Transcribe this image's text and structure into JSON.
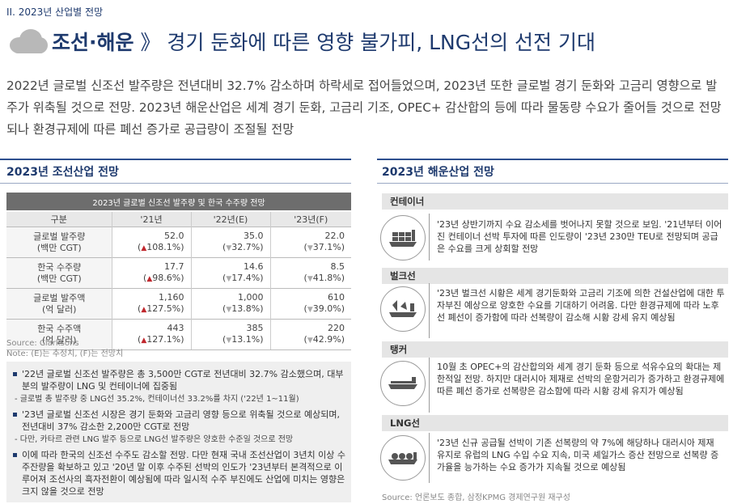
{
  "section_label": "II. 2023년 산업별 전망",
  "headline": {
    "bold": "조선·해운",
    "sep": " 》",
    "rest": " 경기 둔화에 따른 영향 불가피, LNG선의 선전 기대"
  },
  "intro": "2022년 글로벌 신조선 발주량은 전년대비 32.7% 감소하며 하락세로 접어들었으며, 2023년 또한 글로벌 경기 둔화와 고금리 영향으로 발주가 위축될 것으로 전망. 2023년 해운산업은 세계 경기 둔화, 고금리 기조, OPEC+ 감산합의 등에 따라 물동량 수요가 줄어들 것으로 전망되나 환경규제에 따른 폐선 증가로 공급량이 조절될 전망",
  "left_heading": "2023년 조선산업 전망",
  "right_heading": "2023년 해운산업 전망",
  "table": {
    "caption": "2023년 글로벌 신조선 발주량 및 한국 수주량 전망",
    "headers": [
      "구분",
      "'21년",
      "'22년(E)",
      "'23년(F)"
    ],
    "rows": [
      {
        "label1": "글로벌 발주량",
        "label2": "(백만 CGT)",
        "cells": [
          {
            "v": "52.0",
            "c": "108.1%",
            "d": "up"
          },
          {
            "v": "35.0",
            "c": "32.7%",
            "d": "dn"
          },
          {
            "v": "22.0",
            "c": "37.1%",
            "d": "dn"
          }
        ]
      },
      {
        "label1": "한국 수주량",
        "label2": "(백만 CGT)",
        "cells": [
          {
            "v": "17.7",
            "c": "98.6%",
            "d": "up"
          },
          {
            "v": "14.6",
            "c": "17.4%",
            "d": "dn"
          },
          {
            "v": "8.5",
            "c": "41.8%",
            "d": "dn"
          }
        ]
      },
      {
        "label1": "글로벌 발주액",
        "label2": "(억 달러)",
        "cells": [
          {
            "v": "1,160",
            "c": "127.5%",
            "d": "up"
          },
          {
            "v": "1,000",
            "c": "13.8%",
            "d": "dn"
          },
          {
            "v": "610",
            "c": "39.0%",
            "d": "dn"
          }
        ]
      },
      {
        "label1": "한국 수주액",
        "label2": "(억 달러)",
        "cells": [
          {
            "v": "443",
            "c": "127.1%",
            "d": "up"
          },
          {
            "v": "385",
            "c": "13.1%",
            "d": "dn"
          },
          {
            "v": "220",
            "c": "42.9%",
            "d": "dn"
          }
        ]
      }
    ],
    "source": "Source: Clarksons",
    "note": "Note: (E)는 추정치, (F)는 전망치"
  },
  "bullets": {
    "b1": "'22년 글로벌 신조선 발주량은 총 3,500만 CGT로 전년대비 32.7% 감소했으며, 대부분의 발주량이 LNG 및 컨테이너에 집중됨",
    "s1": "- 글로벌 총 발주량 중 LNG선 35.2%, 컨테이너선 33.2%를 차지 ('22년 1~11월)",
    "b2": "'23년 글로벌 신조선 시장은 경기 둔화와 고금리 영향 등으로 위축될 것으로 예상되며, 전년대비 37% 감소한 2,200만 CGT로 전망",
    "s2": "- 다만, 카타르 관련 LNG 발주 등으로 LNG선 발주량은 양호한 수준일 것으로 전망",
    "b3": "이에 따라 한국의 신조선 수주도 감소할 전망. 다만 현재 국내 조선산업이 3년치 이상 수주잔량을 확보하고 있고 '20년 말 이후 수주된 선박의 인도가 '23년부터 본격적으로 이루어져 조선사의 흑자전환이 예상됨에 따라  일시적 수주 부진에도 산업에 미치는 영향은 크지 않을 것으로 전망"
  },
  "shipping": [
    {
      "category": "컨테이너",
      "text": "'23년 상반기까지 수요 감소세를 벗어나지 못할 것으로 보임. '21년부터 이어진 컨테이너 선박 투자에 따른 인도량이 '23년 230만 TEU로 전망되며 공급은 수요를 크게 상회할 전망"
    },
    {
      "category": "벌크선",
      "text": "'23년 벌크선 시황은 세계 경기둔화와 고금리 기조에 의한 건설산업에 대한 투자부진 예상으로 양호한 수요를 기대하기 어려움. 다만 환경규제에 따라 노후선 폐선이 증가함에 따라 선복량이 감소해 시황 강세 유지 예상됨"
    },
    {
      "category": "탱커",
      "text": "10월 초 OPEC+의 감산합의와 세계 경기 둔화 등으로 석유수요의 확대는 제한적일 전망. 하지만 대러시아 제재로 선박의 운항거리가 증가하고 환경규제에 따른 폐선 증가로 선복량은 감소함에 따라 시황 강세 유지가 예상됨"
    },
    {
      "category": "LNG선",
      "text": "'23년 신규 공급될 선박이 기존 선복량의 약 7%에 해당하나 대러시아 제재 유지로 유럽의 LNG 수입 수요 지속, 미국 셰일가스 증산 전망으로 선복량 증가율을 능가하는 수요 증가가 지속될 것으로 예상됨"
    }
  ],
  "right_source": "Source: 언론보도 종합, 삼정KPMG 경제연구원 재구성",
  "colors": {
    "navy": "#1e3a6e",
    "up_red": "#c0272d",
    "down_gray": "#aaaaaa"
  }
}
